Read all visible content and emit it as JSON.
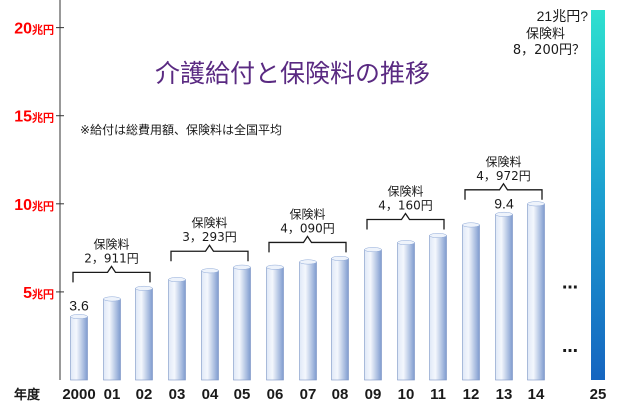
{
  "chart_data": {
    "type": "bar",
    "title": "介護給付と保険料の推移",
    "note": "※給付は総費用額、保険料は全国平均",
    "xlabel": "年度",
    "categories": [
      "2000",
      "01",
      "02",
      "03",
      "04",
      "05",
      "06",
      "07",
      "08",
      "09",
      "10",
      "11",
      "12",
      "13",
      "14",
      "25"
    ],
    "values": [
      3.6,
      4.6,
      5.2,
      5.7,
      6.2,
      6.4,
      6.4,
      6.7,
      6.9,
      7.4,
      7.8,
      8.2,
      8.8,
      9.4,
      10.0,
      21
    ],
    "unit": "兆円",
    "ylim": [
      0,
      21
    ],
    "yticks": [
      {
        "value": 5,
        "label": "5",
        "unit": "兆円"
      },
      {
        "value": 10,
        "label": "10",
        "unit": "兆円"
      },
      {
        "value": 15,
        "label": "15",
        "unit": "兆円"
      },
      {
        "value": 20,
        "label": "20",
        "unit": "兆円"
      }
    ],
    "data_labels": [
      {
        "index": 0,
        "text": "3.6"
      },
      {
        "index": 13,
        "text": "9.4"
      },
      {
        "index": 15,
        "text": "21兆円?"
      }
    ],
    "premium_groups": [
      {
        "from": 0,
        "to": 2,
        "label": "保険料",
        "amount": "2，911円"
      },
      {
        "from": 3,
        "to": 5,
        "label": "保険料",
        "amount": "3，293円"
      },
      {
        "from": 6,
        "to": 8,
        "label": "保険料",
        "amount": "4，090円"
      },
      {
        "from": 9,
        "to": 11,
        "label": "保険料",
        "amount": "4，160円"
      },
      {
        "from": 12,
        "to": 14,
        "label": "保険料",
        "amount": "4，972円"
      }
    ],
    "projection": {
      "label": "保険料",
      "amount": "8，200円？"
    },
    "ellipsis": [
      "…",
      "…"
    ],
    "colors": {
      "bar": "#8ea9d8",
      "bar_light": "#dfe8f7",
      "projection_top": "#2ee0cf",
      "projection_bottom": "#1565c0",
      "tick": "#ff0000",
      "title": "#5a2a82"
    },
    "grid": false
  }
}
